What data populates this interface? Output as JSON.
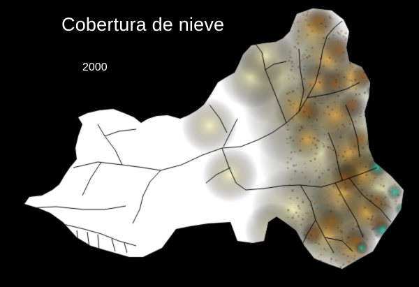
{
  "map": {
    "title": "Cobertura de nieve",
    "year": "2000",
    "colors": {
      "background": "#000000",
      "snow": "#ffffff",
      "lowland": "#f5f0b8",
      "midland": "#d9a040",
      "highland": "#8a5018",
      "peak": "#2fc8b4",
      "rivers": "#000000"
    },
    "elements": [
      "snow-cover-area",
      "elevation-relief",
      "river-network"
    ]
  }
}
